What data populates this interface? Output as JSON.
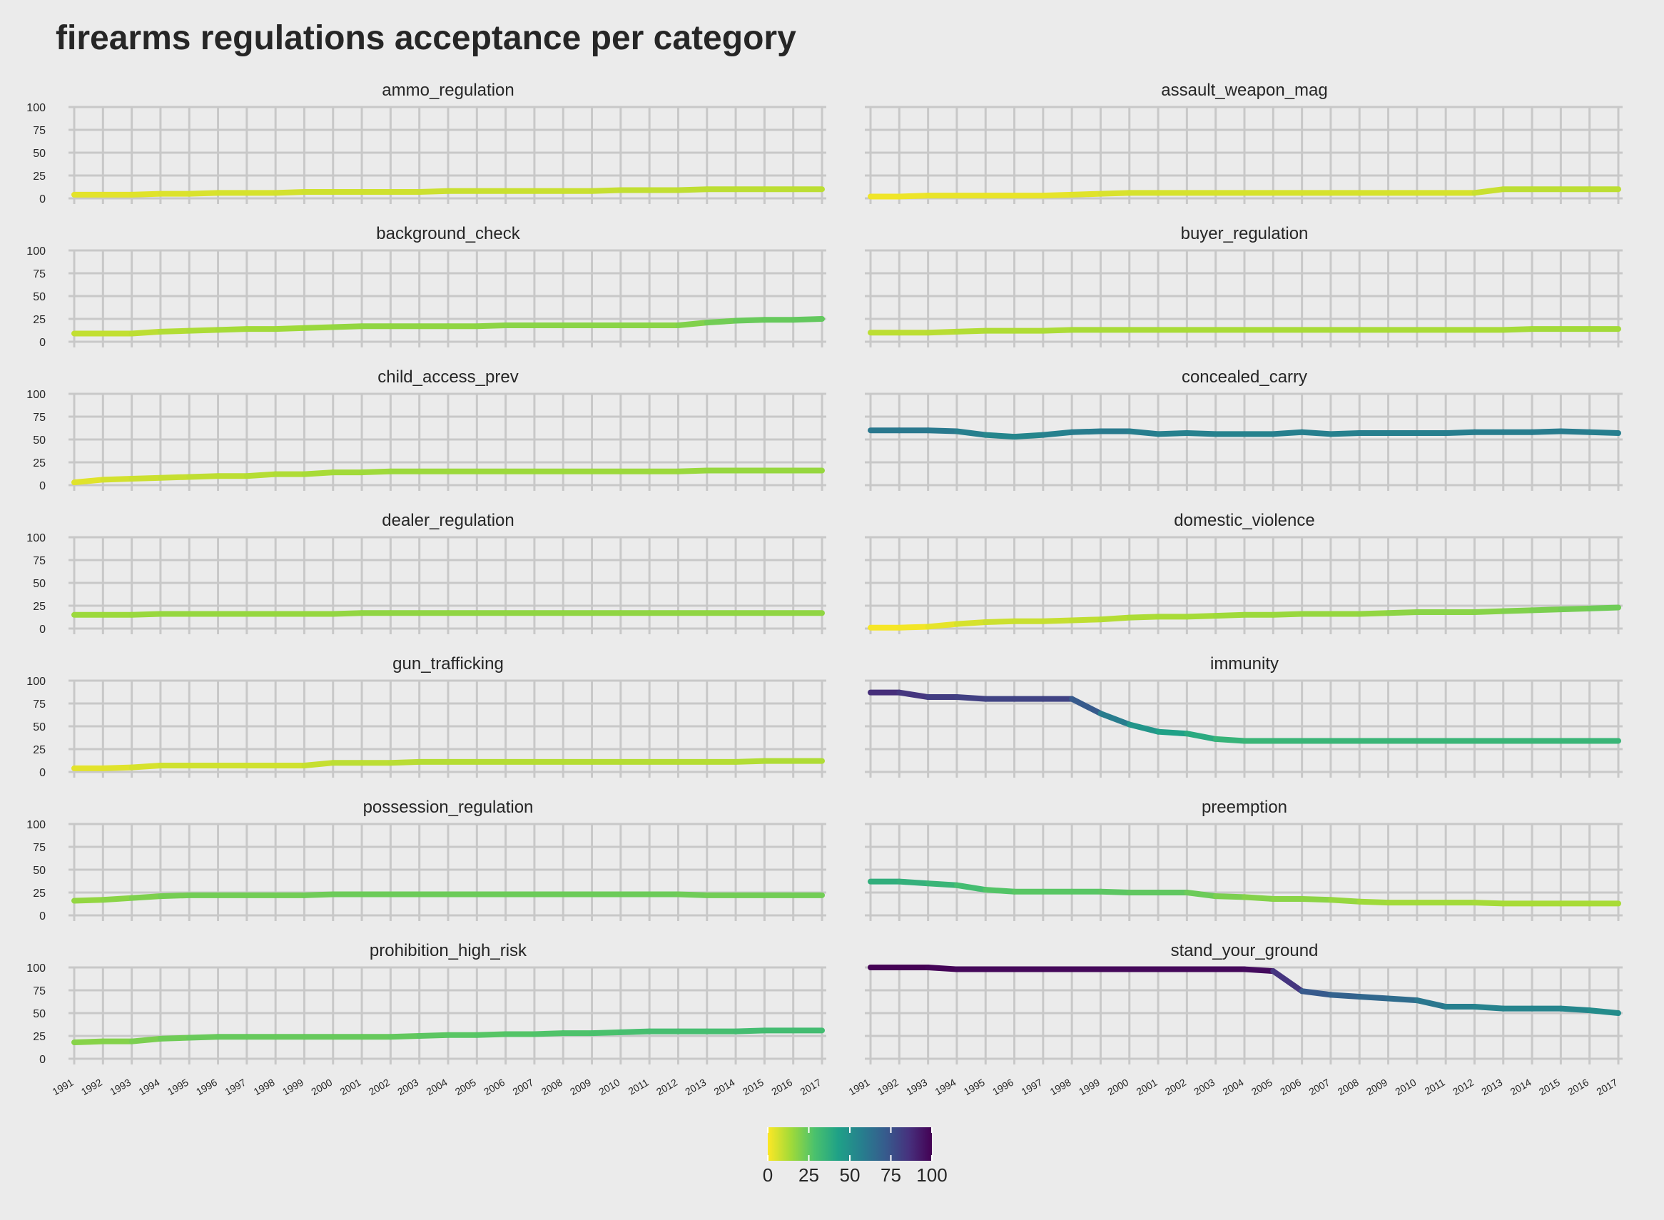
{
  "title": "firearms regulations acceptance per category",
  "colorbar": {
    "ticks": [
      "0",
      "25",
      "50",
      "75",
      "100"
    ],
    "colors": [
      "#fde725",
      "#a0da39",
      "#4ac16d",
      "#1fa187",
      "#277f8e",
      "#365c8d",
      "#46327e",
      "#440154"
    ]
  },
  "colors": {
    "background": "#ebebeb",
    "grid": "#c8c8c8",
    "text": "#262626"
  },
  "chart_data": {
    "type": "line",
    "layout": "facet-grid",
    "x": [
      1991,
      1992,
      1993,
      1994,
      1995,
      1996,
      1997,
      1998,
      1999,
      2000,
      2001,
      2002,
      2003,
      2004,
      2005,
      2006,
      2007,
      2008,
      2009,
      2010,
      2011,
      2012,
      2013,
      2014,
      2015,
      2016,
      2017
    ],
    "x_tick_labels": [
      "1991",
      "1992",
      "1993",
      "1994",
      "1995",
      "1996",
      "1997",
      "1998",
      "1999",
      "2000",
      "2001",
      "2002",
      "2003",
      "2004",
      "2005",
      "2006",
      "2007",
      "2008",
      "2009",
      "2010",
      "2011",
      "2012",
      "2013",
      "2014",
      "2015",
      "2016",
      "2017"
    ],
    "y_tick_labels": [
      "0",
      "25",
      "50",
      "75",
      "100"
    ],
    "ylim": [
      0,
      100
    ],
    "grid": true,
    "color_scale": "viridis reversed, 0-100",
    "panels": [
      {
        "name": "ammo_regulation",
        "values": [
          4,
          4,
          4,
          5,
          5,
          6,
          6,
          6,
          7,
          7,
          7,
          7,
          7,
          8,
          8,
          8,
          8,
          8,
          8,
          9,
          9,
          9,
          10,
          10,
          10,
          10,
          10
        ]
      },
      {
        "name": "assault_weapon_mag",
        "values": [
          2,
          2,
          3,
          3,
          3,
          3,
          3,
          4,
          5,
          6,
          6,
          6,
          6,
          6,
          6,
          6,
          6,
          6,
          6,
          6,
          6,
          6,
          10,
          10,
          10,
          10,
          10
        ]
      },
      {
        "name": "background_check",
        "values": [
          9,
          9,
          9,
          11,
          12,
          13,
          14,
          14,
          15,
          16,
          17,
          17,
          17,
          17,
          17,
          18,
          18,
          18,
          18,
          18,
          18,
          18,
          21,
          23,
          24,
          24,
          25
        ]
      },
      {
        "name": "buyer_regulation",
        "values": [
          10,
          10,
          10,
          11,
          12,
          12,
          12,
          13,
          13,
          13,
          13,
          13,
          13,
          13,
          13,
          13,
          13,
          13,
          13,
          13,
          13,
          13,
          13,
          14,
          14,
          14,
          14
        ]
      },
      {
        "name": "child_access_prev",
        "values": [
          3,
          6,
          7,
          8,
          9,
          10,
          10,
          12,
          12,
          14,
          14,
          15,
          15,
          15,
          15,
          15,
          15,
          15,
          15,
          15,
          15,
          15,
          16,
          16,
          16,
          16,
          16
        ]
      },
      {
        "name": "concealed_carry",
        "values": [
          60,
          60,
          60,
          59,
          55,
          53,
          55,
          58,
          59,
          59,
          56,
          57,
          56,
          56,
          56,
          58,
          56,
          57,
          57,
          57,
          57,
          58,
          58,
          58,
          59,
          58,
          57
        ]
      },
      {
        "name": "dealer_regulation",
        "values": [
          15,
          15,
          15,
          16,
          16,
          16,
          16,
          16,
          16,
          16,
          17,
          17,
          17,
          17,
          17,
          17,
          17,
          17,
          17,
          17,
          17,
          17,
          17,
          17,
          17,
          17,
          17
        ]
      },
      {
        "name": "domestic_violence",
        "values": [
          1,
          1,
          2,
          5,
          7,
          8,
          8,
          9,
          10,
          12,
          13,
          13,
          14,
          15,
          15,
          16,
          16,
          16,
          17,
          18,
          18,
          18,
          19,
          20,
          21,
          22,
          23
        ]
      },
      {
        "name": "gun_trafficking",
        "values": [
          4,
          4,
          5,
          7,
          7,
          7,
          7,
          7,
          7,
          10,
          10,
          10,
          11,
          11,
          11,
          11,
          11,
          11,
          11,
          11,
          11,
          11,
          11,
          11,
          12,
          12,
          12
        ]
      },
      {
        "name": "immunity",
        "values": [
          87,
          87,
          82,
          82,
          80,
          80,
          80,
          80,
          64,
          52,
          44,
          42,
          36,
          34,
          34,
          34,
          34,
          34,
          34,
          34,
          34,
          34,
          34,
          34,
          34,
          34,
          34
        ]
      },
      {
        "name": "possession_regulation",
        "values": [
          16,
          17,
          19,
          21,
          22,
          22,
          22,
          22,
          22,
          23,
          23,
          23,
          23,
          23,
          23,
          23,
          23,
          23,
          23,
          23,
          23,
          23,
          22,
          22,
          22,
          22,
          22
        ]
      },
      {
        "name": "preemption",
        "values": [
          37,
          37,
          35,
          33,
          28,
          26,
          26,
          26,
          26,
          25,
          25,
          25,
          21,
          20,
          18,
          18,
          17,
          15,
          14,
          14,
          14,
          14,
          13,
          13,
          13,
          13,
          13
        ]
      },
      {
        "name": "prohibition_high_risk",
        "values": [
          18,
          19,
          19,
          22,
          23,
          24,
          24,
          24,
          24,
          24,
          24,
          24,
          25,
          26,
          26,
          27,
          27,
          28,
          28,
          29,
          30,
          30,
          30,
          30,
          31,
          31,
          31
        ]
      },
      {
        "name": "stand_your_ground",
        "values": [
          100,
          100,
          100,
          98,
          98,
          98,
          98,
          98,
          98,
          98,
          98,
          98,
          98,
          98,
          96,
          74,
          70,
          68,
          66,
          64,
          57,
          57,
          55,
          55,
          55,
          53,
          50
        ]
      }
    ]
  }
}
